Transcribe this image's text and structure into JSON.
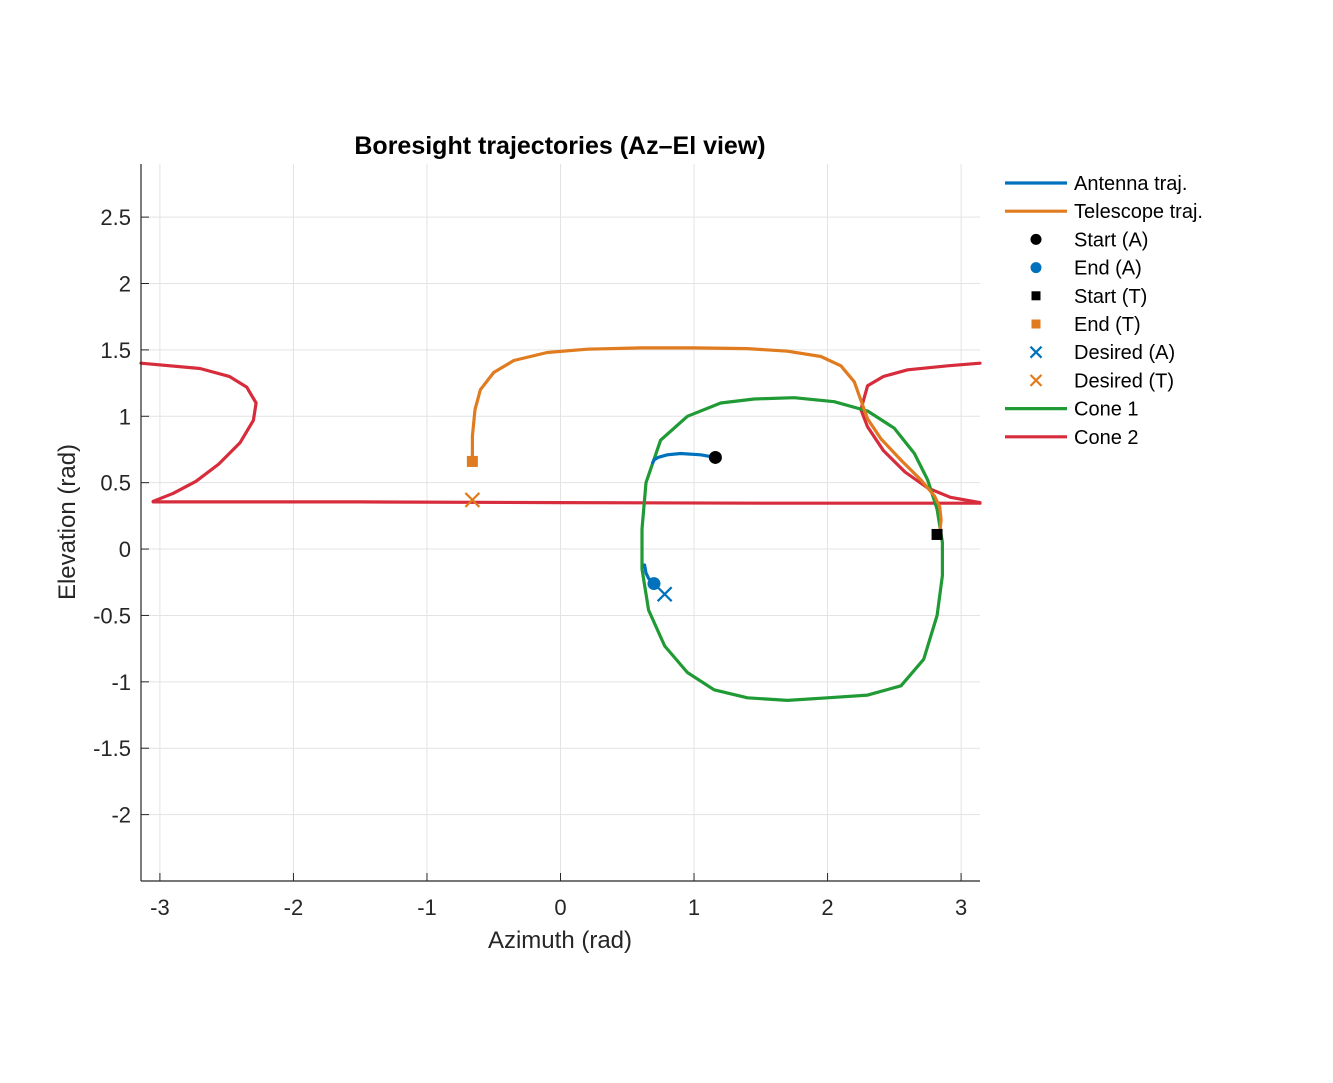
{
  "chart_data": {
    "type": "line",
    "title": "Boresight trajectories (Az–El view)",
    "xlabel": "Azimuth (rad)",
    "ylabel": "Elevation (rad)",
    "xlim": [
      -3.1416,
      3.1416
    ],
    "ylim": [
      -2.5,
      2.9
    ],
    "xticks": [
      -3,
      -2,
      -1,
      0,
      1,
      2,
      3
    ],
    "xtick_labels": [
      "-3",
      "-2",
      "-1",
      "0",
      "1",
      "2",
      "3"
    ],
    "yticks": [
      -2,
      -1.5,
      -1,
      -0.5,
      0,
      0.5,
      1,
      1.5,
      2,
      2.5
    ],
    "ytick_labels": [
      "-2",
      "-1.5",
      "-1",
      "-0.5",
      "0",
      "0.5",
      "1",
      "1.5",
      "2",
      "2.5"
    ],
    "grid": true,
    "legend_position": "outside-right",
    "colors": {
      "antenna": "#0072BD",
      "telescope": "#EDB120",
      "telescope_line": "#E07B1F",
      "cone1": "#1F9A35",
      "cone2": "#D62C3C",
      "black": "#000000",
      "grid": "#E3E3E3",
      "axis": "#262626"
    },
    "series": [
      {
        "name": "Antenna traj.",
        "kind": "line",
        "color": "#0072BD",
        "points": [
          [
            1.16,
            0.69
          ],
          [
            1.05,
            0.71
          ],
          [
            0.9,
            0.72
          ],
          [
            0.8,
            0.71
          ],
          [
            0.73,
            0.69
          ],
          [
            0.7,
            0.67
          ],
          [
            0.69,
            0.65
          ]
        ],
        "points2": [
          [
            0.63,
            -0.12
          ],
          [
            0.64,
            -0.18
          ],
          [
            0.66,
            -0.22
          ],
          [
            0.7,
            -0.26
          ]
        ]
      },
      {
        "name": "Telescope traj.",
        "kind": "line",
        "color": "#E07B1F",
        "points": [
          [
            -0.66,
            0.66
          ],
          [
            -0.66,
            0.85
          ],
          [
            -0.64,
            1.05
          ],
          [
            -0.6,
            1.2
          ],
          [
            -0.5,
            1.33
          ],
          [
            -0.35,
            1.42
          ],
          [
            -0.1,
            1.48
          ],
          [
            0.2,
            1.505
          ],
          [
            0.6,
            1.515
          ],
          [
            1.0,
            1.515
          ],
          [
            1.4,
            1.51
          ],
          [
            1.7,
            1.49
          ],
          [
            1.95,
            1.45
          ],
          [
            2.1,
            1.38
          ],
          [
            2.2,
            1.26
          ],
          [
            2.25,
            1.12
          ],
          [
            2.3,
            0.98
          ],
          [
            2.4,
            0.83
          ],
          [
            2.55,
            0.67
          ],
          [
            2.7,
            0.52
          ],
          [
            2.8,
            0.4
          ],
          [
            2.84,
            0.32
          ],
          [
            2.85,
            0.22
          ],
          [
            2.84,
            0.12
          ]
        ]
      },
      {
        "name": "Start (A)",
        "kind": "marker",
        "marker": "circle",
        "color": "#000000",
        "points": [
          [
            1.16,
            0.69
          ]
        ]
      },
      {
        "name": "End (A)",
        "kind": "marker",
        "marker": "circle",
        "color": "#0072BD",
        "points": [
          [
            0.7,
            -0.26
          ]
        ]
      },
      {
        "name": "Start (T)",
        "kind": "marker",
        "marker": "square",
        "color": "#000000",
        "points": [
          [
            2.82,
            0.11
          ]
        ]
      },
      {
        "name": "End (T)",
        "kind": "marker",
        "marker": "square",
        "color": "#E07B1F",
        "points": [
          [
            -0.66,
            0.66
          ]
        ]
      },
      {
        "name": "Desired (A)",
        "kind": "marker",
        "marker": "x",
        "color": "#0072BD",
        "points": [
          [
            0.78,
            -0.34
          ]
        ]
      },
      {
        "name": "Desired (T)",
        "kind": "marker",
        "marker": "x",
        "color": "#E07B1F",
        "points": [
          [
            -0.66,
            0.37
          ]
        ]
      },
      {
        "name": "Cone 1",
        "kind": "line",
        "color": "#1F9A35",
        "points": [
          [
            0.75,
            0.82
          ],
          [
            0.95,
            1.0
          ],
          [
            1.2,
            1.1
          ],
          [
            1.45,
            1.13
          ],
          [
            1.75,
            1.14
          ],
          [
            2.05,
            1.11
          ],
          [
            2.3,
            1.04
          ],
          [
            2.5,
            0.91
          ],
          [
            2.65,
            0.72
          ],
          [
            2.75,
            0.52
          ],
          [
            2.82,
            0.3
          ],
          [
            2.86,
            0.05
          ],
          [
            2.86,
            -0.2
          ],
          [
            2.82,
            -0.5
          ],
          [
            2.72,
            -0.83
          ],
          [
            2.55,
            -1.03
          ],
          [
            2.3,
            -1.1
          ],
          [
            2.0,
            -1.12
          ],
          [
            1.7,
            -1.14
          ],
          [
            1.4,
            -1.12
          ],
          [
            1.15,
            -1.06
          ],
          [
            0.95,
            -0.93
          ],
          [
            0.78,
            -0.73
          ],
          [
            0.66,
            -0.46
          ],
          [
            0.61,
            -0.15
          ],
          [
            0.61,
            0.15
          ],
          [
            0.64,
            0.5
          ],
          [
            0.75,
            0.82
          ]
        ]
      },
      {
        "name": "Cone 2",
        "kind": "line",
        "color": "#D62C3C",
        "segments": [
          [
            [
              -3.1416,
              1.4
            ],
            [
              -2.7,
              1.36
            ],
            [
              -2.48,
              1.3
            ],
            [
              -2.35,
              1.22
            ],
            [
              -2.28,
              1.1
            ],
            [
              -2.3,
              0.97
            ],
            [
              -2.4,
              0.8
            ],
            [
              -2.56,
              0.64
            ],
            [
              -2.73,
              0.51
            ],
            [
              -2.9,
              0.42
            ],
            [
              -3.05,
              0.36
            ]
          ],
          [
            [
              -3.05,
              0.355
            ],
            [
              -1.5,
              0.355
            ],
            [
              0.0,
              0.35
            ],
            [
              1.5,
              0.345
            ],
            [
              2.5,
              0.345
            ],
            [
              3.1416,
              0.345
            ]
          ],
          [
            [
              2.25,
              1.05
            ],
            [
              2.3,
              1.23
            ],
            [
              2.42,
              1.3
            ],
            [
              2.6,
              1.35
            ],
            [
              2.9,
              1.38
            ],
            [
              3.1416,
              1.4
            ]
          ],
          [
            [
              2.25,
              1.05
            ],
            [
              2.3,
              0.92
            ],
            [
              2.42,
              0.74
            ],
            [
              2.58,
              0.58
            ],
            [
              2.75,
              0.46
            ],
            [
              2.92,
              0.39
            ],
            [
              3.1416,
              0.35
            ]
          ]
        ]
      }
    ]
  }
}
